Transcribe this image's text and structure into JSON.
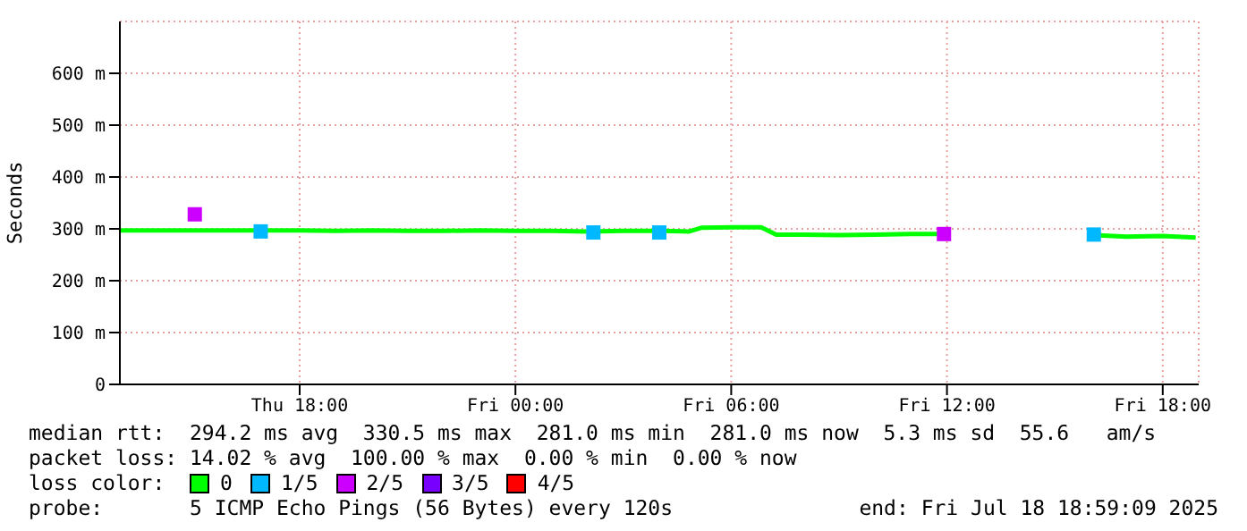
{
  "chart_data": {
    "type": "line",
    "ylabel": "Seconds",
    "xlim": [
      "2025-07-17T13:00",
      "2025-07-18T19:00"
    ],
    "xticks": [
      {
        "value": "2025-07-17T18:00",
        "label": "Thu 18:00"
      },
      {
        "value": "2025-07-18T00:00",
        "label": "Fri 00:00"
      },
      {
        "value": "2025-07-18T06:00",
        "label": "Fri 06:00"
      },
      {
        "value": "2025-07-18T12:00",
        "label": "Fri 12:00"
      },
      {
        "value": "2025-07-18T18:00",
        "label": "Fri 18:00"
      }
    ],
    "ylim": [
      0,
      700
    ],
    "yticks": [
      0,
      {
        "value": 100,
        "label": "100 m"
      },
      {
        "value": 200,
        "label": "200 m"
      },
      {
        "value": 300,
        "label": "300 m"
      },
      {
        "value": 400,
        "label": "400 m"
      },
      {
        "value": 500,
        "label": "500 m"
      },
      {
        "value": 600,
        "label": "600 m"
      }
    ],
    "grid": true,
    "legend": "bottom",
    "legend_title": "loss color:",
    "marker": "none",
    "line_style": "solid",
    "series": [
      {
        "name": "0",
        "color": "#00ff00",
        "x": [
          "2025-07-17T13:00",
          "2025-07-17T14:00",
          "2025-07-17T15:00",
          "2025-07-17T16:00",
          "2025-07-17T17:00",
          "2025-07-17T18:00",
          "2025-07-17T19:00",
          "2025-07-17T20:00",
          "2025-07-17T21:00",
          "2025-07-17T22:00",
          "2025-07-17T23:00",
          "2025-07-18T00:00",
          "2025-07-18T01:00",
          "2025-07-18T02:00",
          "2025-07-18T03:00",
          "2025-07-18T04:00",
          "2025-07-18T04:50",
          "2025-07-18T05:10",
          "2025-07-18T06:00",
          "2025-07-18T06:50",
          "2025-07-18T07:15",
          "2025-07-18T08:00",
          "2025-07-18T09:00",
          "2025-07-18T10:00",
          "2025-07-18T11:00",
          "2025-07-18T11:55",
          "2025-07-18T12:00",
          "2025-07-18T16:05",
          "2025-07-18T17:00",
          "2025-07-18T18:00",
          "2025-07-18T18:55"
        ],
        "values": [
          297,
          297,
          297,
          297,
          297,
          297,
          296,
          297,
          296,
          296,
          297,
          296,
          296,
          295,
          296,
          296,
          295,
          302,
          303,
          303,
          289,
          289,
          288,
          289,
          290,
          290,
          null,
          288,
          285,
          286,
          283
        ]
      },
      {
        "name": "1/5",
        "color": "#00b8ff",
        "type": "scatter",
        "marker": "square",
        "x": [
          "2025-07-17T16:55",
          "2025-07-18T02:10",
          "2025-07-18T04:00",
          "2025-07-18T16:05"
        ],
        "values": [
          295,
          293,
          293,
          289
        ]
      },
      {
        "name": "2/5",
        "color": "#cc00ff",
        "type": "scatter",
        "marker": "square",
        "x": [
          "2025-07-17T15:05",
          "2025-07-18T11:55"
        ],
        "values": [
          328,
          290
        ]
      },
      {
        "name": "3/5",
        "color": "#7700ff"
      },
      {
        "name": "4/5",
        "color": "#ff0000"
      }
    ],
    "annotations": [
      "median rtt:  294.2 ms avg  330.5 ms max  281.0 ms min  281.0 ms now  5.3 ms sd  55.6   am/s",
      "packet loss: 14.02 % avg  100.00 % max  0.00 % min  0.00 % now",
      "probe:       5 ICMP Echo Pings (56 Bytes) every 120s",
      "end: Fri Jul 18 18:59:09 2025"
    ]
  }
}
